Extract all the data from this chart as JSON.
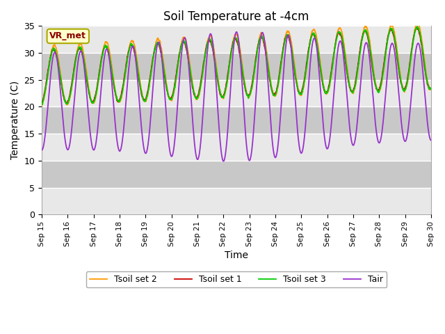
{
  "title": "Soil Temperature at -4cm",
  "xlabel": "Time",
  "ylabel": "Temperature (C)",
  "ylim": [
    0,
    35
  ],
  "yticks": [
    0,
    5,
    10,
    15,
    20,
    25,
    30,
    35
  ],
  "xlim": [
    0,
    360
  ],
  "x_tick_positions": [
    0,
    24,
    48,
    72,
    96,
    120,
    144,
    168,
    192,
    216,
    240,
    264,
    288,
    312,
    336,
    360
  ],
  "x_tick_labels": [
    "Sep 15",
    "Sep 16",
    "Sep 17",
    "Sep 18",
    "Sep 19",
    "Sep 20",
    "Sep 21",
    "Sep 22",
    "Sep 23",
    "Sep 24",
    "Sep 25",
    "Sep 26",
    "Sep 27",
    "Sep 28",
    "Sep 29",
    "Sep 30"
  ],
  "colors": {
    "Tair": "#9932CC",
    "Tsoil_set1": "#CC0000",
    "Tsoil_set2": "#FF9900",
    "Tsoil_set3": "#00CC00"
  },
  "legend_labels": [
    "Tair",
    "Tsoil set 1",
    "Tsoil set 2",
    "Tsoil set 3"
  ],
  "label_box_text": "VR_met",
  "label_box_facecolor": "#FFFFCC",
  "label_box_edgecolor": "#AAAA00",
  "background_color": "#FFFFFF",
  "plot_bg_color": "#DCDCDC",
  "band_light_color": "#E8E8E8",
  "band_dark_color": "#C8C8C8",
  "title_fontsize": 12,
  "figsize": [
    6.4,
    4.8
  ],
  "dpi": 100
}
